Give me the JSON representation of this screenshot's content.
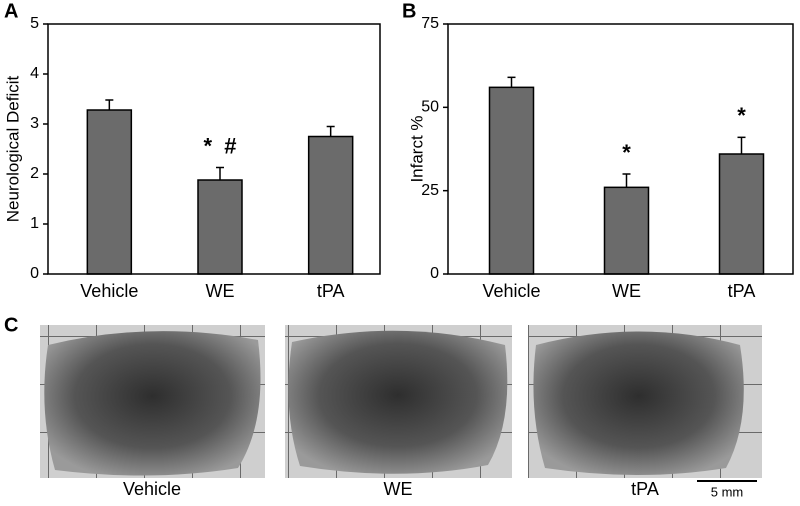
{
  "chart_data": [
    {
      "type": "bar",
      "panel_label": "A",
      "y_label": "Neurological Deficit",
      "categories": [
        "Vehicle",
        "WE",
        "tPA"
      ],
      "values": [
        3.28,
        1.88,
        2.75
      ],
      "errors": [
        0.2,
        0.25,
        0.2
      ],
      "annotations": [
        null,
        "*  #",
        null
      ],
      "color": "#6b6b6b",
      "ylim": [
        0,
        5
      ],
      "yticks": [
        0,
        1,
        2,
        3,
        4,
        5
      ]
    },
    {
      "type": "bar",
      "panel_label": "B",
      "y_label": "Infarct %",
      "categories": [
        "Vehicle",
        "WE",
        "tPA"
      ],
      "values": [
        56,
        26,
        36
      ],
      "errors": [
        3,
        4,
        5
      ],
      "annotations": [
        null,
        "*",
        "*"
      ],
      "color": "#6b6b6b",
      "ylim": [
        0,
        75
      ],
      "yticks": [
        0,
        25,
        50,
        75
      ]
    }
  ],
  "panel_c": {
    "panel_label": "C",
    "images": [
      "Vehicle",
      "WE",
      "tPA"
    ],
    "scale_bar": "5 mm"
  }
}
